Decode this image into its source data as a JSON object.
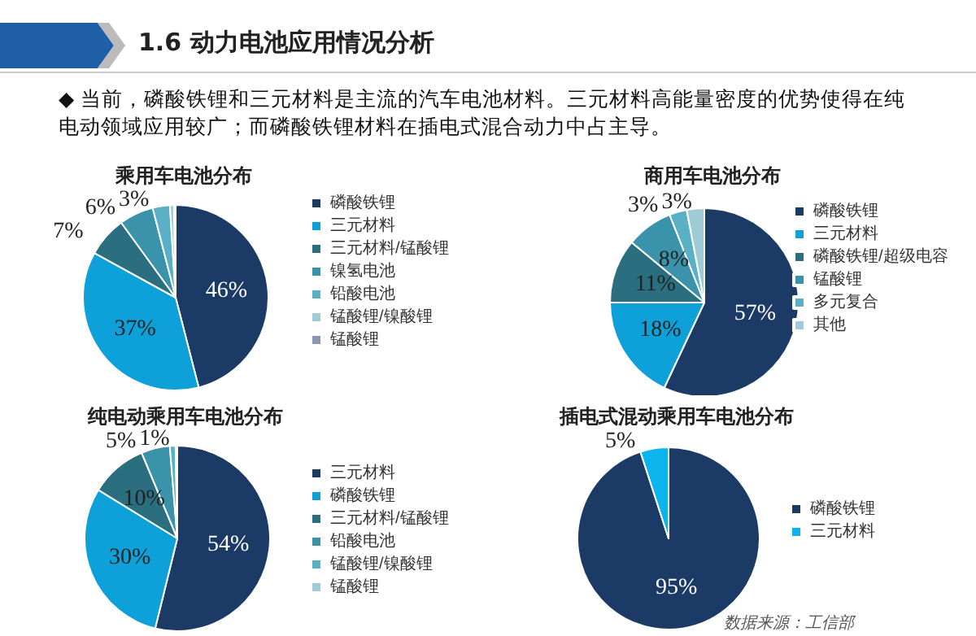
{
  "chart_data": [
    {
      "type": "pie",
      "title": "乘用车电池分布",
      "annotations": [
        "1.6 动力电池应用情况分析",
        "◆ 当前，磷酸铁锂和三元材料是主流的汽车电池材料。三元材料高能量密度的优势使得在纯电动领域应用较广；而磷酸铁锂材料在插电式混合动力中占主导。"
      ],
      "categories": [
        "磷酸铁锂",
        "三元材料",
        "三元材料/锰酸锂",
        "镍氢电池",
        "铅酸电池",
        "锰酸锂/镍酸锂",
        "锰酸锂"
      ],
      "values": [
        46,
        37,
        7,
        6,
        3,
        0.7,
        0.3
      ],
      "value_labels": [
        "46%",
        "37%",
        "7%",
        "6%",
        "3%",
        null,
        null
      ],
      "colors": [
        "#1b3a66",
        "#0ea0d8",
        "#2a6e80",
        "#3a93aa",
        "#5ab0c4",
        "#9fcbd6",
        "#8a96b5"
      ],
      "legend": "right"
    },
    {
      "type": "pie",
      "title": "商用车电池分布",
      "categories": [
        "磷酸铁锂",
        "三元材料",
        "磷酸铁锂/超级电容",
        "锰酸锂",
        "多元复合",
        "其他"
      ],
      "values": [
        57,
        18,
        11,
        8,
        3,
        3
      ],
      "value_labels": [
        "57%",
        "18%",
        "11%",
        "8%",
        "3%",
        "3%"
      ],
      "colors": [
        "#1b3a66",
        "#0ea0d8",
        "#2a6e80",
        "#3a93aa",
        "#5ab0c4",
        "#9fcbd6"
      ],
      "legend": "right"
    },
    {
      "type": "pie",
      "title": "纯电动乘用车电池分布",
      "categories": [
        "三元材料",
        "磷酸铁锂",
        "三元材料/锰酸锂",
        "铅酸电池",
        "锰酸锂/镍酸锂",
        "锰酸锂"
      ],
      "values": [
        54,
        30,
        10,
        5,
        1,
        0.3
      ],
      "value_labels": [
        "54%",
        "30%",
        "10%",
        "5%",
        "1%",
        null
      ],
      "colors": [
        "#1b3a66",
        "#0ea0d8",
        "#2a6e80",
        "#3a93aa",
        "#5ab0c4",
        "#9fcbd6"
      ],
      "legend": "right"
    },
    {
      "type": "pie",
      "title": "插电式混动乘用车电池分布",
      "annotations": [
        "数据来源：工信部"
      ],
      "categories": [
        "磷酸铁锂",
        "三元材料"
      ],
      "values": [
        95,
        5
      ],
      "value_labels": [
        "95%",
        "5%"
      ],
      "colors": [
        "#1b3a66",
        "#0cb4ee"
      ],
      "legend": "right"
    }
  ]
}
